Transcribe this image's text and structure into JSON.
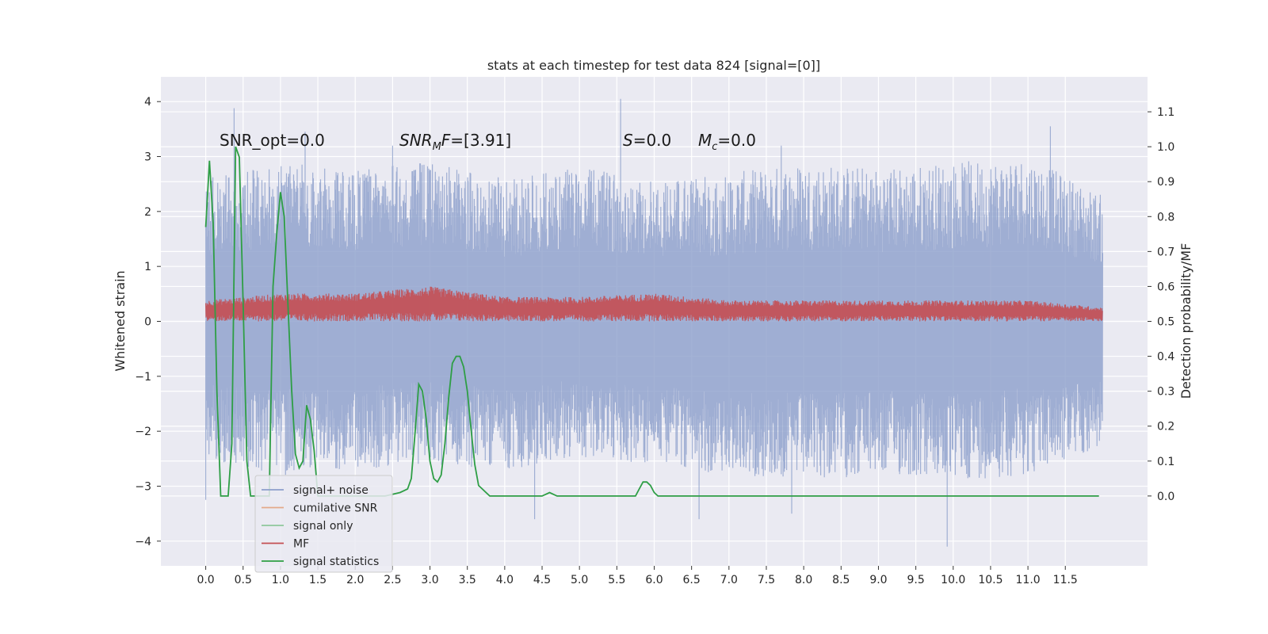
{
  "chart_data": {
    "type": "line",
    "title": "stats at each timestep for test data 824 [signal=[0]]",
    "xlabel": "",
    "ylabel_left": "Whitened strain",
    "ylabel_right": "Detection probability/MF",
    "xlim": [
      -0.6,
      12.6
    ],
    "ylim_left": [
      -4.45,
      4.45
    ],
    "ylim_right": [
      -0.2,
      1.2
    ],
    "x_ticks": [
      0.0,
      0.5,
      1.0,
      1.5,
      2.0,
      2.5,
      3.0,
      3.5,
      4.0,
      4.5,
      5.0,
      5.5,
      6.0,
      6.5,
      7.0,
      7.5,
      8.0,
      8.5,
      9.0,
      9.5,
      10.0,
      10.5,
      11.0,
      11.5
    ],
    "x_tick_labels": [
      "0.0",
      "0.5",
      "1.0",
      "1.5",
      "2.0",
      "2.5",
      "3.0",
      "3.5",
      "4.0",
      "4.5",
      "5.0",
      "5.5",
      "6.0",
      "6.5",
      "7.0",
      "7.5",
      "8.0",
      "8.5",
      "9.0",
      "9.5",
      "10.0",
      "10.5",
      "11.0",
      "11.5"
    ],
    "y_left_ticks": [
      -4,
      -3,
      -2,
      -1,
      0,
      1,
      2,
      3,
      4
    ],
    "y_left_tick_labels": [
      "−4",
      "−3",
      "−2",
      "−1",
      "0",
      "1",
      "2",
      "3",
      "4"
    ],
    "y_right_ticks": [
      0.0,
      0.1,
      0.2,
      0.3,
      0.4,
      0.5,
      0.6,
      0.7,
      0.8,
      0.9,
      1.0,
      1.1
    ],
    "y_right_tick_labels": [
      "0.0",
      "0.1",
      "0.2",
      "0.3",
      "0.4",
      "0.5",
      "0.6",
      "0.7",
      "0.8",
      "0.9",
      "1.0",
      "1.1"
    ],
    "grid": true,
    "legend_position": "lower-left",
    "annotations": [
      {
        "text": "SNR_opt=0.0",
        "x": 0.2,
        "y": 3.3
      },
      {
        "text": "SNR_MF=[3.91]",
        "x": 2.6,
        "y": 3.3
      },
      {
        "text": "S=0.0",
        "x": 5.6,
        "y": 3.3
      },
      {
        "text": "M_c=0.0",
        "x": 6.6,
        "y": 3.3
      }
    ],
    "series": [
      {
        "name": "signal+ noise",
        "axis": "left",
        "color": "#8c9fcb",
        "kind": "noise-band",
        "x_range": [
          0.0,
          12.0
        ],
        "envelope_x": [
          0.0,
          1.0,
          2.0,
          3.0,
          4.0,
          5.0,
          6.0,
          7.0,
          8.0,
          9.0,
          10.0,
          11.0,
          12.0
        ],
        "envelope_upper": [
          2.6,
          2.9,
          2.8,
          2.9,
          2.6,
          2.8,
          2.6,
          2.7,
          2.9,
          2.8,
          2.9,
          3.0,
          2.3
        ],
        "envelope_lower": [
          -2.5,
          -2.8,
          -2.7,
          -2.6,
          -2.7,
          -2.5,
          -2.6,
          -2.8,
          -2.9,
          -2.8,
          -2.9,
          -2.8,
          -2.3
        ],
        "spikes": [
          {
            "x": 0.38,
            "y": 3.88
          },
          {
            "x": 1.33,
            "y": 3.45
          },
          {
            "x": 2.5,
            "y": 3.2
          },
          {
            "x": 5.55,
            "y": 4.05
          },
          {
            "x": 7.7,
            "y": 3.2
          },
          {
            "x": 11.3,
            "y": 3.55
          },
          {
            "x": 0.0,
            "y": -3.25
          },
          {
            "x": 4.4,
            "y": -3.6
          },
          {
            "x": 6.6,
            "y": -3.6
          },
          {
            "x": 9.92,
            "y": -4.1
          },
          {
            "x": 7.84,
            "y": -3.5
          }
        ]
      },
      {
        "name": "cumilative SNR",
        "axis": "right",
        "color": "#dd8452",
        "values": []
      },
      {
        "name": "signal only",
        "axis": "left",
        "color": "#55a868",
        "values": []
      },
      {
        "name": "MF",
        "axis": "right",
        "color": "#c44e52",
        "kind": "noise-band",
        "x_range": [
          0.0,
          12.0
        ],
        "envelope_x": [
          0.0,
          1.0,
          2.0,
          3.0,
          4.0,
          5.0,
          6.0,
          7.0,
          8.0,
          9.0,
          10.0,
          11.0,
          12.0
        ],
        "envelope_upper": [
          0.56,
          0.58,
          0.58,
          0.6,
          0.57,
          0.57,
          0.58,
          0.56,
          0.56,
          0.56,
          0.56,
          0.56,
          0.54
        ],
        "envelope_lower": [
          0.5,
          0.5,
          0.5,
          0.5,
          0.5,
          0.5,
          0.5,
          0.5,
          0.5,
          0.5,
          0.5,
          0.5,
          0.5
        ]
      },
      {
        "name": "signal statistics",
        "axis": "right",
        "color": "#2e9e45",
        "x": [
          0.0,
          0.05,
          0.1,
          0.15,
          0.2,
          0.25,
          0.3,
          0.35,
          0.4,
          0.45,
          0.5,
          0.55,
          0.6,
          0.65,
          0.7,
          0.75,
          0.8,
          0.85,
          0.9,
          0.95,
          1.0,
          1.05,
          1.1,
          1.15,
          1.2,
          1.25,
          1.3,
          1.35,
          1.4,
          1.45,
          1.5,
          1.55,
          1.6,
          1.65,
          1.7,
          1.75,
          1.8,
          1.9,
          2.0,
          2.2,
          2.4,
          2.6,
          2.7,
          2.75,
          2.8,
          2.85,
          2.9,
          2.95,
          3.0,
          3.05,
          3.1,
          3.15,
          3.2,
          3.25,
          3.3,
          3.35,
          3.4,
          3.45,
          3.5,
          3.55,
          3.6,
          3.65,
          3.7,
          3.75,
          3.8,
          3.9,
          4.0,
          4.2,
          4.4,
          4.5,
          4.6,
          4.7,
          4.8,
          5.0,
          5.2,
          5.4,
          5.5,
          5.6,
          5.7,
          5.75,
          5.8,
          5.85,
          5.9,
          5.95,
          6.0,
          6.05,
          6.1,
          6.2,
          6.5,
          7.0,
          7.5,
          8.0,
          8.5,
          9.0,
          9.2,
          9.4,
          9.6,
          9.8,
          10.0,
          10.2,
          10.4,
          10.5,
          10.6,
          10.8,
          11.0,
          11.2,
          11.4,
          11.5,
          11.6,
          11.8,
          11.95
        ],
        "values": [
          0.77,
          0.96,
          0.78,
          0.3,
          0.0,
          0.0,
          0.0,
          0.15,
          1.0,
          0.97,
          0.55,
          0.1,
          0.0,
          0.0,
          0.0,
          0.0,
          0.0,
          0.0,
          0.6,
          0.75,
          0.87,
          0.8,
          0.55,
          0.3,
          0.12,
          0.08,
          0.1,
          0.26,
          0.22,
          0.13,
          0.0,
          0.0,
          0.0,
          0.0,
          0.0,
          0.0,
          0.0,
          0.0,
          0.0,
          0.0,
          0.0,
          0.01,
          0.02,
          0.05,
          0.18,
          0.32,
          0.3,
          0.22,
          0.1,
          0.05,
          0.04,
          0.06,
          0.15,
          0.28,
          0.38,
          0.4,
          0.4,
          0.37,
          0.3,
          0.19,
          0.09,
          0.03,
          0.02,
          0.01,
          0.0,
          0.0,
          0.0,
          0.0,
          0.0,
          0.0,
          0.01,
          0.0,
          0.0,
          0.0,
          0.0,
          0.0,
          0.0,
          0.0,
          0.0,
          0.0,
          0.02,
          0.04,
          0.04,
          0.03,
          0.01,
          0.0,
          0.0,
          0.0,
          0.0,
          0.0,
          0.0,
          0.0,
          0.0,
          0.0,
          0.0,
          0.0,
          0.0,
          0.0,
          0.0,
          0.0,
          0.0,
          0.0,
          0.0,
          0.0,
          0.0,
          0.0,
          0.0,
          0.0,
          0.0,
          0.0,
          0.0
        ]
      }
    ]
  }
}
